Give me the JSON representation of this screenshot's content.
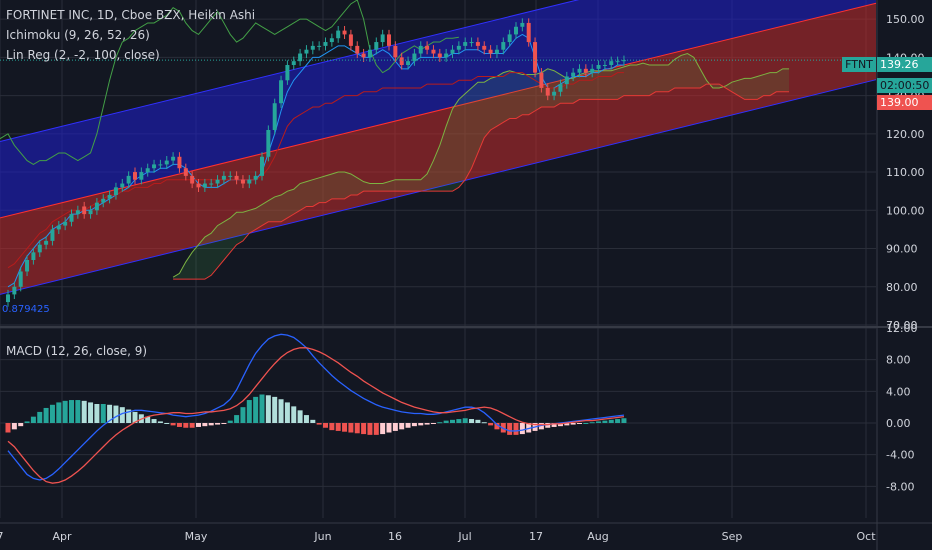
{
  "header": {
    "title": "FORTINET INC, 1D, Cboe BZX, Heikin Ashi",
    "ichimoku": "Ichimoku (9, 26, 52, 26)",
    "linreg": "Lin Reg (2, -2, 100, close)",
    "macd": "MACD (12, 26, close, 9)"
  },
  "tags": {
    "symbol": "FTNT",
    "last_price": "139.26",
    "countdown": "02:00:50",
    "level": "139.00",
    "linreg_start": "0.879425"
  },
  "colors": {
    "background": "#131722",
    "bull_candle": "#26a69a",
    "bear_candle": "#ef5350",
    "band_upper": "#1f1fd1",
    "band_lower": "#c42b2b",
    "macd_line": "#2962ff",
    "signal_line": "#ef5350",
    "hist_pos_strong": "#26a69a",
    "hist_pos_weak": "#b2dfdb",
    "hist_neg_strong": "#ef5350",
    "hist_neg_weak": "#ffcdd2",
    "cloud_green": "#43a047",
    "cloud_red": "#e53935"
  },
  "chart_data": [
    {
      "type": "candlestick",
      "title": "FORTINET INC, 1D, Cboe BZX, Heikin Ashi",
      "x_ticks": [
        "7",
        "Apr",
        "May",
        "Jun",
        "16",
        "Jul",
        "17",
        "Aug",
        "Sep",
        "Oct"
      ],
      "y_ticks": [
        "150.00",
        "140.00",
        "130.00",
        "120.00",
        "110.00",
        "100.00",
        "90.00",
        "80.00",
        "70.00"
      ],
      "ylim": [
        70,
        155
      ],
      "last_price": 139.26,
      "level": 139.0,
      "candles_close": [
        78,
        80,
        84,
        87,
        89,
        91,
        92,
        95,
        96,
        97,
        99,
        100,
        99,
        100,
        102,
        103,
        104,
        106,
        107,
        109,
        108,
        110,
        111,
        112,
        112,
        113,
        114,
        111,
        109,
        107,
        106,
        107,
        107,
        108,
        109,
        109,
        108,
        107,
        108,
        109,
        114,
        121,
        128,
        134,
        138,
        139,
        141,
        142,
        143,
        143,
        144,
        145,
        147,
        146,
        143,
        141,
        140,
        142,
        144,
        146,
        143,
        140,
        138,
        139,
        141,
        143,
        142,
        141,
        140,
        141,
        142,
        143,
        144,
        144,
        143,
        142,
        141,
        142,
        144,
        146,
        148,
        149,
        144,
        136,
        132,
        130,
        131,
        133,
        135,
        136,
        137,
        136,
        137,
        138,
        138,
        139,
        139,
        139.26
      ],
      "candles_open": [
        76,
        78,
        80,
        84,
        87,
        89,
        91,
        92,
        95,
        96,
        97,
        99,
        101,
        99,
        100,
        102,
        103,
        104,
        106,
        107,
        110,
        108,
        110,
        111,
        112,
        112,
        113,
        114,
        111,
        109,
        107,
        106,
        107,
        107,
        108,
        109,
        109,
        108,
        107,
        108,
        109,
        114,
        121,
        128,
        134,
        138,
        139,
        141,
        142,
        143,
        143,
        144,
        145,
        147,
        146,
        143,
        141,
        140,
        142,
        144,
        146,
        143,
        140,
        138,
        139,
        141,
        143,
        142,
        141,
        140,
        141,
        142,
        143,
        144,
        144,
        143,
        142,
        141,
        142,
        144,
        146,
        148,
        149,
        144,
        136,
        132,
        130,
        131,
        133,
        135,
        136,
        137,
        136,
        137,
        138,
        138,
        139,
        139
      ],
      "ichimoku": {
        "conversion": [
          80,
          81,
          85,
          88,
          90,
          92,
          93,
          95,
          96,
          97,
          99,
          99,
          100,
          100,
          101,
          102,
          103,
          104,
          105,
          106,
          108,
          109,
          110,
          110,
          111,
          111,
          112,
          112,
          111,
          109,
          107,
          106,
          106,
          106,
          107,
          108,
          108,
          108,
          108,
          108,
          110,
          115,
          120,
          126,
          131,
          134,
          136,
          138,
          140,
          140,
          141,
          142,
          143,
          143,
          142,
          141,
          140,
          140,
          141,
          142,
          141,
          139,
          137,
          137,
          139,
          140,
          140,
          140,
          140,
          140,
          141,
          141,
          142,
          142,
          142,
          141,
          141,
          141,
          141,
          143,
          145,
          146,
          145,
          140,
          135,
          132,
          132,
          133,
          134,
          135,
          135,
          135,
          136,
          136,
          137,
          137,
          138,
          138
        ],
        "base": [
          85,
          86,
          88,
          90,
          92,
          94,
          95,
          97,
          98,
          99,
          100,
          100,
          100,
          101,
          102,
          103,
          104,
          104,
          105,
          105,
          106,
          106,
          106,
          107,
          107,
          108,
          108,
          108,
          108,
          108,
          108,
          108,
          108,
          108,
          108,
          108,
          108,
          108,
          108,
          108,
          109,
          111,
          114,
          118,
          122,
          124,
          125,
          126,
          127,
          127,
          128,
          128,
          129,
          130,
          130,
          130,
          131,
          131,
          131,
          132,
          132,
          132,
          132,
          132,
          132,
          132,
          133,
          133,
          133,
          133,
          133,
          134,
          134,
          134,
          135,
          135,
          135,
          135,
          135,
          136,
          136,
          136,
          135,
          134,
          133,
          132,
          132,
          132,
          133,
          133,
          134,
          134,
          134,
          135,
          135,
          135,
          136,
          136
        ],
        "span_a_end": 138,
        "span_b_end": 135
      },
      "linreg": {
        "start": 0.879425,
        "mid_start": 98,
        "mid_end": 138,
        "upper_offset": 20,
        "lower_offset": 20
      }
    },
    {
      "type": "bar",
      "title": "MACD (12, 26, close, 9)",
      "y_ticks": [
        "12.00",
        "8.00",
        "4.00",
        "0.00",
        "-4.00",
        "-8.00"
      ],
      "ylim": [
        -12,
        12
      ],
      "histogram": [
        -1.2,
        -0.8,
        -0.4,
        0.2,
        0.8,
        1.4,
        1.9,
        2.3,
        2.6,
        2.8,
        2.9,
        2.9,
        2.8,
        2.6,
        2.4,
        2.4,
        2.3,
        2.2,
        2.0,
        1.7,
        1.4,
        1.1,
        0.8,
        0.5,
        0.2,
        0.0,
        -0.3,
        -0.5,
        -0.6,
        -0.6,
        -0.5,
        -0.4,
        -0.3,
        -0.2,
        -0.1,
        0.3,
        1.0,
        2.0,
        2.9,
        3.3,
        3.6,
        3.5,
        3.3,
        3.0,
        2.6,
        2.1,
        1.6,
        1.0,
        0.4,
        -0.2,
        -0.6,
        -0.9,
        -1.0,
        -1.1,
        -1.2,
        -1.3,
        -1.4,
        -1.5,
        -1.5,
        -1.4,
        -1.2,
        -1.0,
        -0.8,
        -0.6,
        -0.4,
        -0.3,
        -0.2,
        -0.1,
        0.1,
        0.3,
        0.4,
        0.5,
        0.6,
        0.5,
        0.4,
        0.1,
        -0.3,
        -0.8,
        -1.2,
        -1.5,
        -1.5,
        -1.4,
        -1.2,
        -1.0,
        -0.8,
        -0.6,
        -0.5,
        -0.4,
        -0.3,
        -0.2,
        -0.1,
        0.0,
        0.1,
        0.2,
        0.3,
        0.4,
        0.5,
        0.6
      ],
      "macd_line": [
        -3.5,
        -4.5,
        -5.5,
        -6.5,
        -7.0,
        -7.2,
        -7.0,
        -6.5,
        -5.8,
        -5.0,
        -4.2,
        -3.4,
        -2.6,
        -1.8,
        -1.0,
        -0.3,
        0.3,
        0.8,
        1.2,
        1.4,
        1.6,
        1.6,
        1.5,
        1.4,
        1.3,
        1.2,
        1.0,
        0.9,
        0.8,
        0.9,
        1.0,
        1.2,
        1.5,
        1.9,
        2.3,
        3.0,
        4.2,
        5.8,
        7.4,
        8.8,
        9.8,
        10.6,
        11.0,
        11.2,
        11.1,
        10.8,
        10.2,
        9.5,
        8.5,
        7.6,
        6.8,
        6.0,
        5.3,
        4.7,
        4.1,
        3.6,
        3.1,
        2.7,
        2.3,
        2.0,
        1.8,
        1.6,
        1.4,
        1.3,
        1.2,
        1.2,
        1.1,
        1.1,
        1.2,
        1.4,
        1.6,
        1.8,
        2.0,
        2.0,
        1.8,
        1.3,
        0.6,
        -0.2,
        -0.7,
        -1.0,
        -1.0,
        -0.9,
        -0.7,
        -0.5,
        -0.3,
        -0.2,
        -0.1,
        0.0,
        0.1,
        0.2,
        0.3,
        0.4,
        0.5,
        0.6,
        0.7,
        0.8,
        0.9,
        1.0
      ],
      "signal_line": [
        -2.3,
        -3.0,
        -4.0,
        -5.0,
        -6.0,
        -6.8,
        -7.4,
        -7.6,
        -7.5,
        -7.2,
        -6.7,
        -6.1,
        -5.4,
        -4.6,
        -3.8,
        -3.0,
        -2.2,
        -1.5,
        -0.9,
        -0.4,
        0.1,
        0.5,
        0.8,
        1.0,
        1.1,
        1.2,
        1.3,
        1.3,
        1.2,
        1.2,
        1.3,
        1.4,
        1.4,
        1.5,
        1.6,
        1.8,
        2.2,
        2.8,
        3.6,
        4.6,
        5.6,
        6.6,
        7.5,
        8.3,
        8.9,
        9.3,
        9.5,
        9.5,
        9.3,
        9.0,
        8.6,
        8.1,
        7.6,
        7.0,
        6.4,
        5.9,
        5.3,
        4.8,
        4.3,
        3.8,
        3.4,
        3.0,
        2.6,
        2.3,
        2.0,
        1.8,
        1.6,
        1.4,
        1.3,
        1.3,
        1.4,
        1.5,
        1.6,
        1.8,
        1.9,
        2.0,
        1.9,
        1.6,
        1.2,
        0.8,
        0.4,
        0.1,
        -0.1,
        -0.2,
        -0.2,
        -0.2,
        -0.1,
        -0.1,
        0.0,
        0.1,
        0.2,
        0.3,
        0.3,
        0.4,
        0.5,
        0.6,
        0.7,
        0.8
      ]
    }
  ]
}
